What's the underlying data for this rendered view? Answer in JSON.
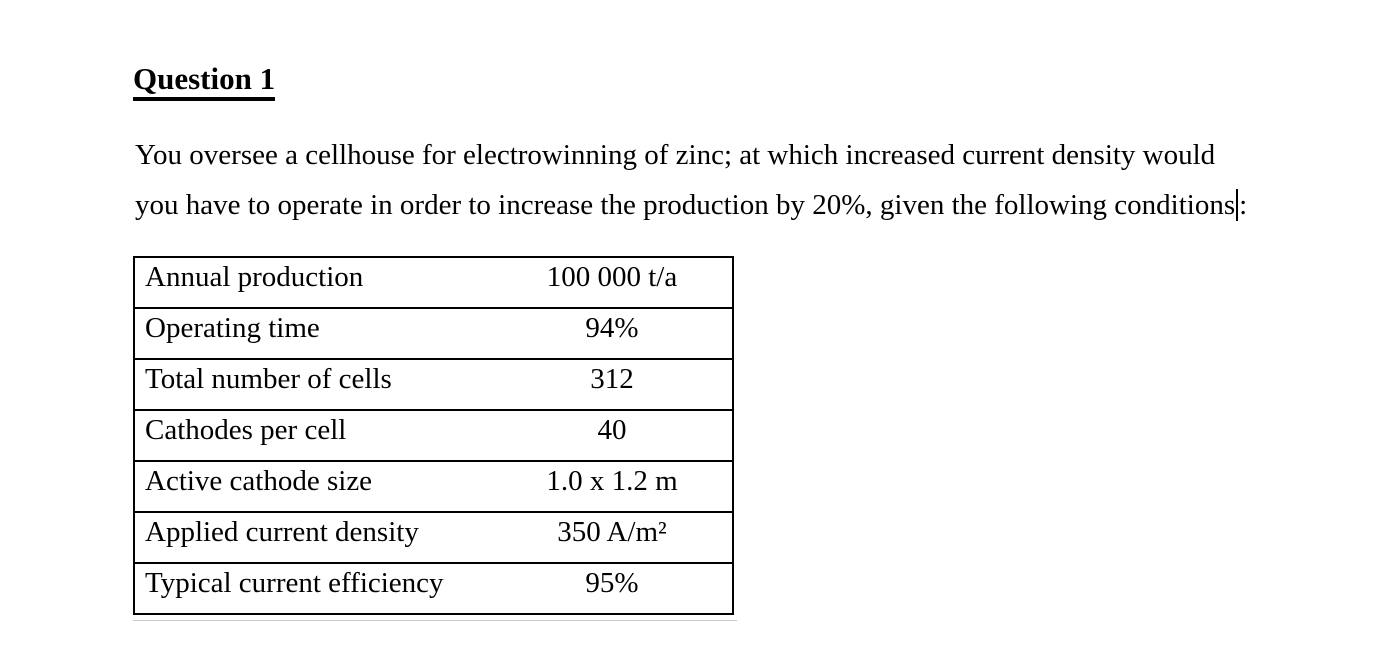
{
  "document": {
    "title": "Question 1",
    "paragraph": {
      "line1": "You oversee a cellhouse for electrowinning of zinc; at which increased current density would",
      "line2_before_caret": "you have to operate in order to increase the production by 20%, given the following conditions",
      "line2_after_caret": ":"
    },
    "table": {
      "rows": [
        {
          "label": "Annual production",
          "value": "100 000 t/a"
        },
        {
          "label": "Operating time",
          "value": "94%"
        },
        {
          "label": "Total number of cells",
          "value": "312"
        },
        {
          "label": "Cathodes per cell",
          "value": "40"
        },
        {
          "label": "Active cathode size",
          "value": "1.0 x 1.2 m"
        },
        {
          "label": "Applied current density",
          "value": "350 A/m²"
        },
        {
          "label": "Typical current efficiency",
          "value": "95%"
        }
      ]
    },
    "colors": {
      "background": "#ffffff",
      "text": "#000000",
      "table_border": "#000000"
    }
  }
}
